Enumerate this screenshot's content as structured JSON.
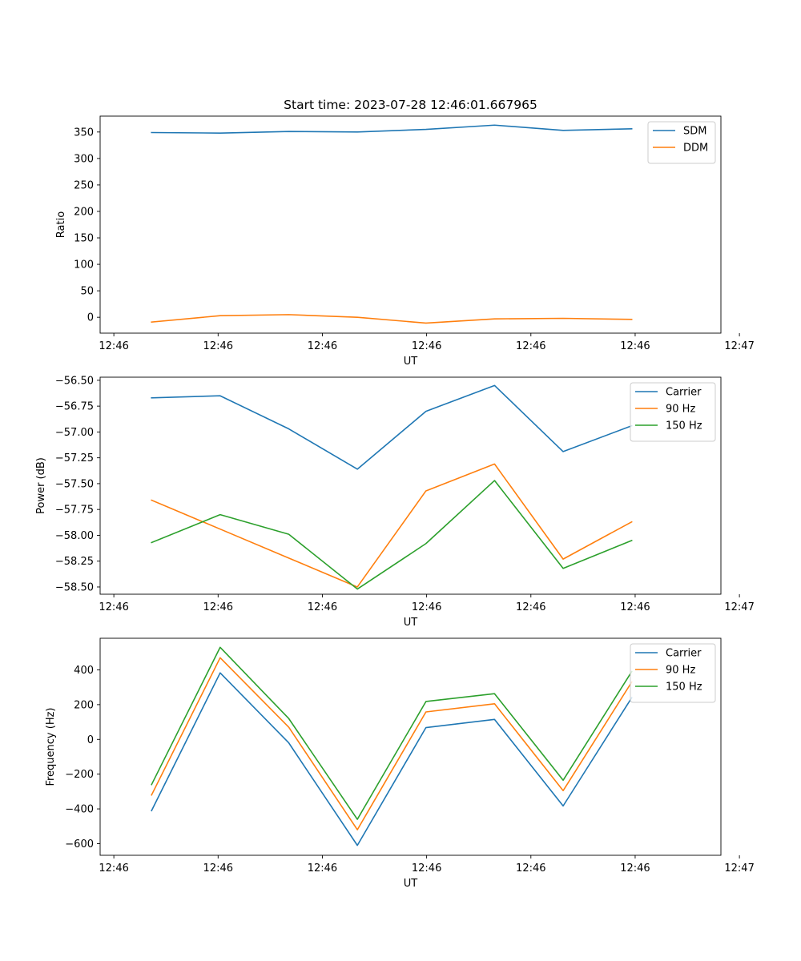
{
  "figure": {
    "title": "Start time: 2023-07-28 12:46:01.667965"
  },
  "chart_data": [
    {
      "type": "line",
      "title": "Start time: 2023-07-28 12:46:01.667965",
      "xlabel": "UT",
      "ylabel": "Ratio",
      "x": [
        1,
        2,
        3,
        4,
        5,
        6,
        7,
        8
      ],
      "xlim": [
        0.25,
        9.3
      ],
      "xticks": [
        0.45,
        1.97,
        3.49,
        5.01,
        6.53,
        8.05,
        9.57
      ],
      "xtick_labels": [
        "12:46",
        "12:46",
        "12:46",
        "12:46",
        "12:46",
        "12:46",
        "12:47"
      ],
      "ylim": [
        -30,
        380
      ],
      "yticks": [
        0,
        50,
        100,
        150,
        200,
        250,
        300,
        350
      ],
      "ytick_labels": [
        "0",
        "50",
        "100",
        "150",
        "200",
        "250",
        "300",
        "350"
      ],
      "legend_position": "top-right",
      "series": [
        {
          "name": "SDM",
          "color": "#1f77b4",
          "values": [
            349,
            348,
            351,
            350,
            355,
            363,
            353,
            356
          ]
        },
        {
          "name": "DDM",
          "color": "#ff7f0e",
          "values": [
            -9,
            3,
            5,
            0,
            -11,
            -3,
            -2,
            -4
          ]
        }
      ]
    },
    {
      "type": "line",
      "title": "",
      "xlabel": "UT",
      "ylabel": "Power (dB)",
      "x": [
        1,
        2,
        3,
        4,
        5,
        6,
        7,
        8
      ],
      "xlim": [
        0.25,
        9.3
      ],
      "xticks": [
        0.45,
        1.97,
        3.49,
        5.01,
        6.53,
        8.05,
        9.57
      ],
      "xtick_labels": [
        "12:46",
        "12:46",
        "12:46",
        "12:46",
        "12:46",
        "12:46",
        "12:47"
      ],
      "ylim": [
        -58.57,
        -56.47
      ],
      "yticks": [
        -58.5,
        -58.25,
        -58.0,
        -57.75,
        -57.5,
        -57.25,
        -57.0,
        -56.75,
        -56.5
      ],
      "ytick_labels": [
        "−58.50",
        "−58.25",
        "−58.00",
        "−57.75",
        "−57.50",
        "−57.25",
        "−57.00",
        "−56.75",
        "−56.50"
      ],
      "legend_position": "top-right",
      "series": [
        {
          "name": "Carrier",
          "color": "#1f77b4",
          "values": [
            -56.67,
            -56.65,
            -56.97,
            -57.36,
            -56.8,
            -56.55,
            -57.19,
            -56.94
          ]
        },
        {
          "name": "90 Hz",
          "color": "#ff7f0e",
          "values": [
            -57.66,
            -57.94,
            -58.22,
            -58.5,
            -57.57,
            -57.31,
            -58.23,
            -57.87
          ]
        },
        {
          "name": "150 Hz",
          "color": "#2ca02c",
          "values": [
            -58.07,
            -57.8,
            -57.99,
            -58.52,
            -58.08,
            -57.47,
            -58.32,
            -58.05
          ]
        }
      ]
    },
    {
      "type": "line",
      "title": "",
      "xlabel": "UT",
      "ylabel": "Frequency (Hz)",
      "x": [
        1,
        2,
        3,
        4,
        5,
        6,
        7,
        8
      ],
      "xlim": [
        0.25,
        9.3
      ],
      "xticks": [
        0.45,
        1.97,
        3.49,
        5.01,
        6.53,
        8.05,
        9.57
      ],
      "xtick_labels": [
        "12:46",
        "12:46",
        "12:46",
        "12:46",
        "12:46",
        "12:46",
        "12:47"
      ],
      "ylim": [
        -667,
        582
      ],
      "yticks": [
        -600,
        -400,
        -200,
        0,
        200,
        400
      ],
      "ytick_labels": [
        "−600",
        "−400",
        "−200",
        "0",
        "200",
        "400"
      ],
      "legend_position": "top-right",
      "series": [
        {
          "name": "Carrier",
          "color": "#1f77b4",
          "values": [
            -410,
            383,
            -20,
            -610,
            68,
            115,
            -383,
            240
          ]
        },
        {
          "name": "90 Hz",
          "color": "#ff7f0e",
          "values": [
            -320,
            470,
            70,
            -520,
            158,
            205,
            -295,
            330
          ]
        },
        {
          "name": "150 Hz",
          "color": "#2ca02c",
          "values": [
            -260,
            530,
            120,
            -460,
            218,
            263,
            -235,
            390
          ]
        }
      ]
    }
  ]
}
